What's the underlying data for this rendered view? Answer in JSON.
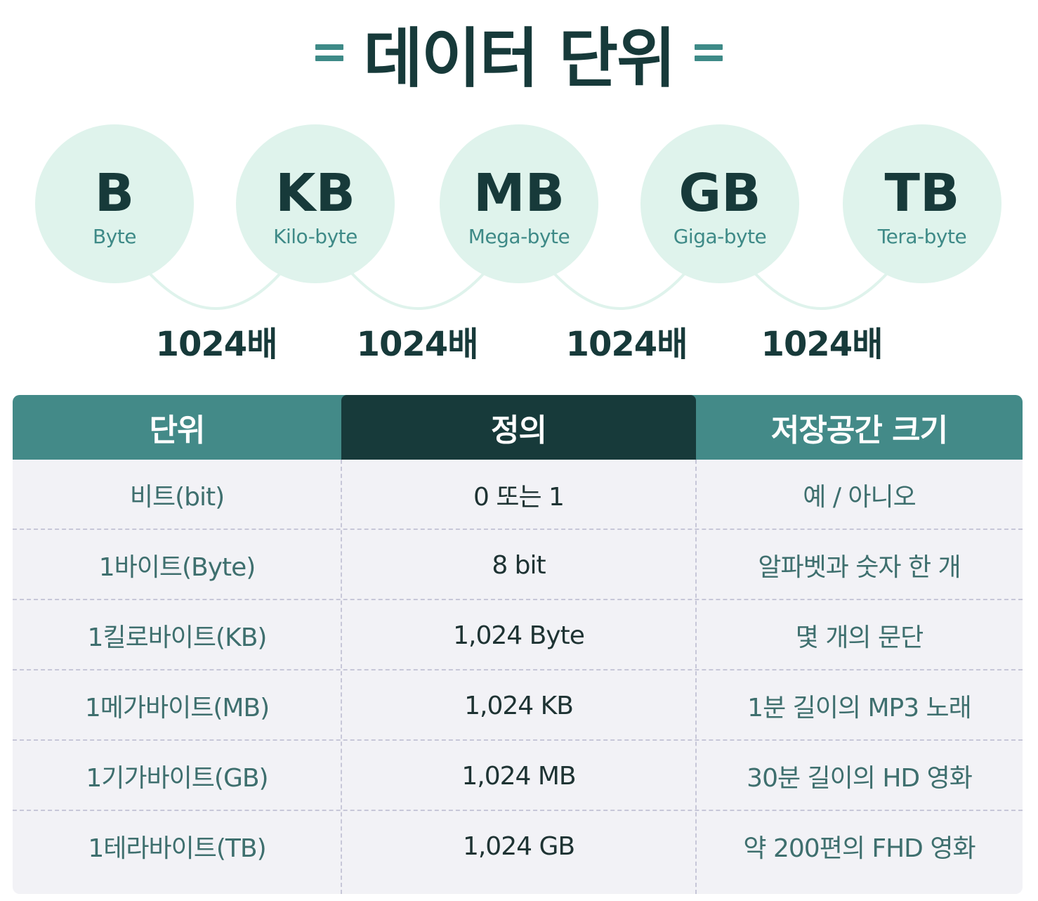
{
  "title": {
    "deco_left": "=",
    "text": "데이터 단위",
    "deco_right": "="
  },
  "units": [
    {
      "abbr": "B",
      "full": "Byte"
    },
    {
      "abbr": "KB",
      "full": "Kilo-byte"
    },
    {
      "abbr": "MB",
      "full": "Mega-byte"
    },
    {
      "abbr": "GB",
      "full": "Giga-byte"
    },
    {
      "abbr": "TB",
      "full": "Tera-byte"
    }
  ],
  "ratios": [
    "1024배",
    "1024배",
    "1024배",
    "1024배"
  ],
  "colors": {
    "dark": "#173a3a",
    "teal": "#3e8a87",
    "mint": "#dff3ec",
    "header": "#438a88",
    "table_bg": "#f2f2f6"
  },
  "table": {
    "headers": [
      "단위",
      "정의",
      "저장공간 크기"
    ],
    "rows": [
      [
        "비트(bit)",
        "0 또는 1",
        "예 / 아니오"
      ],
      [
        "1바이트(Byte)",
        "8 bit",
        "알파벳과 숫자 한 개"
      ],
      [
        "1킬로바이트(KB)",
        "1,024 Byte",
        "몇 개의 문단"
      ],
      [
        "1메가바이트(MB)",
        "1,024 KB",
        "1분 길이의 MP3 노래"
      ],
      [
        "1기가바이트(GB)",
        "1,024 MB",
        "30분 길이의 HD 영화"
      ],
      [
        "1테라바이트(TB)",
        "1,024 GB",
        "약 200편의 FHD 영화"
      ]
    ]
  }
}
